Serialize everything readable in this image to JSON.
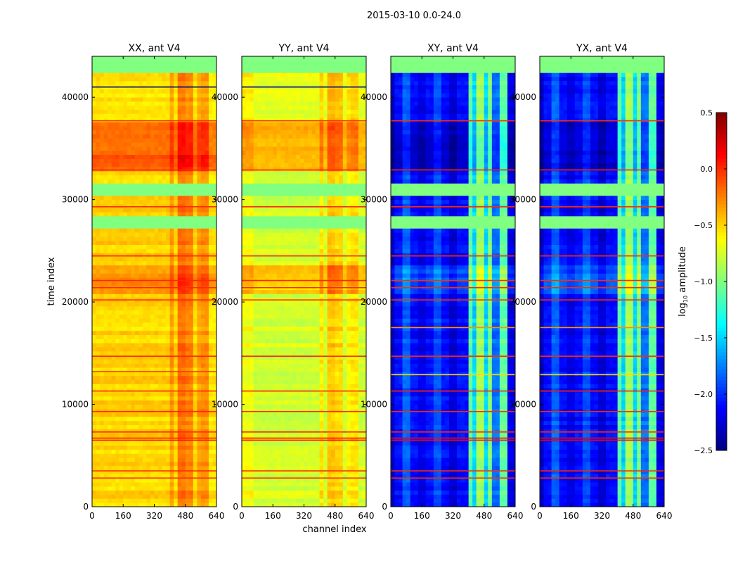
{
  "chart_data": {
    "type": "heatmap",
    "suptitle": "2015-03-10 0.0-24.0",
    "xlabel": "channel index",
    "ylabel": "time index",
    "xlim": [
      0,
      640
    ],
    "ylim": [
      0,
      44000
    ],
    "xticks": [
      "0",
      "160",
      "320",
      "480",
      "640"
    ],
    "xtick_values": [
      0,
      160,
      320,
      480,
      640
    ],
    "yticks": [
      "0",
      "10000",
      "20000",
      "30000",
      "40000"
    ],
    "ytick_values": [
      0,
      10000,
      20000,
      30000,
      40000
    ],
    "colorbar": {
      "label_main": "log",
      "label_sub": "10",
      "label_rest": " amplitude",
      "range": [
        -2.5,
        0.5
      ],
      "colormap": "jet",
      "ticks": [
        "−2.5",
        "−2.0",
        "−1.5",
        "−1.0",
        "−0.5",
        "0.0",
        "0.5"
      ],
      "tick_values": [
        -2.5,
        -2.0,
        -1.5,
        -1.0,
        -0.5,
        0.0,
        0.5
      ]
    },
    "flagged_time_ranges": [
      [
        27150,
        28300
      ],
      [
        30300,
        31750
      ],
      [
        42600,
        44000
      ]
    ],
    "flag_value": -1.0,
    "panels": [
      {
        "title": "XX, ant V4",
        "base": -0.5,
        "time_bands": [
          [
            33000,
            37700,
            -0.15
          ],
          [
            21000,
            23700,
            -0.3
          ],
          [
            37700,
            42600,
            -0.55
          ]
        ],
        "channel_offsets": [
          [
            400,
            430,
            0.18
          ],
          [
            440,
            480,
            0.3
          ],
          [
            490,
            520,
            0.25
          ],
          [
            540,
            560,
            0.15
          ],
          [
            570,
            600,
            0.2
          ],
          [
            600,
            640,
            -0.05
          ]
        ],
        "lines": [
          [
            37700,
            0.0
          ],
          [
            32900,
            0.0
          ],
          [
            29300,
            0.0
          ],
          [
            22100,
            0.0
          ],
          [
            21400,
            0.0
          ],
          [
            20200,
            0.0
          ],
          [
            14700,
            0.0
          ],
          [
            11300,
            0.0
          ],
          [
            9300,
            0.0
          ],
          [
            7300,
            0.0
          ],
          [
            6700,
            0.1
          ],
          [
            6500,
            0.1
          ],
          [
            3500,
            0.0
          ],
          [
            2800,
            0.0
          ],
          [
            24500,
            0.0
          ],
          [
            41000,
            -2.5
          ],
          [
            13200,
            -0.05
          ]
        ]
      },
      {
        "title": "YY, ant V4",
        "base": -0.75,
        "time_bands": [
          [
            33000,
            37700,
            -0.4
          ],
          [
            21000,
            23700,
            -0.5
          ],
          [
            37700,
            42600,
            -0.7
          ]
        ],
        "channel_offsets": [
          [
            0,
            60,
            0.1
          ],
          [
            400,
            430,
            0.2
          ],
          [
            440,
            480,
            0.3
          ],
          [
            490,
            520,
            0.25
          ],
          [
            540,
            560,
            0.15
          ],
          [
            570,
            600,
            0.2
          ]
        ],
        "lines": [
          [
            37700,
            0.0
          ],
          [
            32900,
            0.0
          ],
          [
            29300,
            0.0
          ],
          [
            22100,
            0.0
          ],
          [
            21400,
            0.0
          ],
          [
            20200,
            0.0
          ],
          [
            14700,
            0.0
          ],
          [
            11300,
            0.0
          ],
          [
            9300,
            0.0
          ],
          [
            7300,
            0.0
          ],
          [
            6700,
            0.1
          ],
          [
            6500,
            0.1
          ],
          [
            3500,
            0.0
          ],
          [
            2800,
            0.0
          ],
          [
            24500,
            0.0
          ],
          [
            41000,
            -2.5
          ]
        ]
      },
      {
        "title": "XY, ant V4",
        "base": -2.1,
        "time_bands": [
          [
            33000,
            37700,
            -2.25
          ],
          [
            21000,
            23700,
            -1.9
          ]
        ],
        "channel_offsets": [
          [
            0,
            30,
            -0.2
          ],
          [
            60,
            100,
            0.25
          ],
          [
            140,
            180,
            -0.1
          ],
          [
            220,
            260,
            0.2
          ],
          [
            300,
            340,
            -0.15
          ],
          [
            400,
            420,
            1.0
          ],
          [
            420,
            450,
            0.6
          ],
          [
            450,
            480,
            1.2
          ],
          [
            480,
            500,
            0.6
          ],
          [
            500,
            530,
            1.1
          ],
          [
            530,
            560,
            0.3
          ],
          [
            560,
            600,
            1.0
          ],
          [
            600,
            640,
            -0.1
          ]
        ],
        "lines": [
          [
            37700,
            0.0
          ],
          [
            32900,
            0.0
          ],
          [
            29300,
            0.0
          ],
          [
            22100,
            0.0
          ],
          [
            21400,
            0.0
          ],
          [
            20200,
            0.0
          ],
          [
            14700,
            0.0
          ],
          [
            11300,
            0.0
          ],
          [
            9300,
            0.0
          ],
          [
            7300,
            0.0
          ],
          [
            6700,
            0.1
          ],
          [
            6500,
            0.1
          ],
          [
            3500,
            0.0
          ],
          [
            2800,
            0.0
          ],
          [
            24500,
            0.0
          ],
          [
            17500,
            -0.3
          ],
          [
            12900,
            -0.5
          ]
        ]
      },
      {
        "title": "YX, ant V4",
        "base": -2.1,
        "time_bands": [
          [
            33000,
            37700,
            -2.25
          ],
          [
            21000,
            23700,
            -1.9
          ]
        ],
        "channel_offsets": [
          [
            0,
            30,
            -0.2
          ],
          [
            60,
            100,
            0.25
          ],
          [
            140,
            180,
            -0.1
          ],
          [
            220,
            260,
            0.2
          ],
          [
            300,
            340,
            -0.15
          ],
          [
            400,
            420,
            1.0
          ],
          [
            420,
            450,
            0.6
          ],
          [
            450,
            480,
            1.2
          ],
          [
            480,
            500,
            0.6
          ],
          [
            500,
            530,
            1.1
          ],
          [
            530,
            560,
            0.3
          ],
          [
            560,
            600,
            1.0
          ],
          [
            600,
            640,
            -0.1
          ]
        ],
        "lines": [
          [
            37700,
            0.0
          ],
          [
            32900,
            0.0
          ],
          [
            29300,
            0.0
          ],
          [
            22100,
            0.0
          ],
          [
            21400,
            0.0
          ],
          [
            20200,
            0.0
          ],
          [
            14700,
            0.0
          ],
          [
            11300,
            0.0
          ],
          [
            9300,
            0.0
          ],
          [
            7300,
            0.0
          ],
          [
            6700,
            0.1
          ],
          [
            6500,
            0.1
          ],
          [
            3500,
            0.0
          ],
          [
            2800,
            0.0
          ],
          [
            24500,
            0.0
          ],
          [
            17500,
            -0.3
          ],
          [
            12900,
            -0.5
          ]
        ]
      }
    ]
  }
}
